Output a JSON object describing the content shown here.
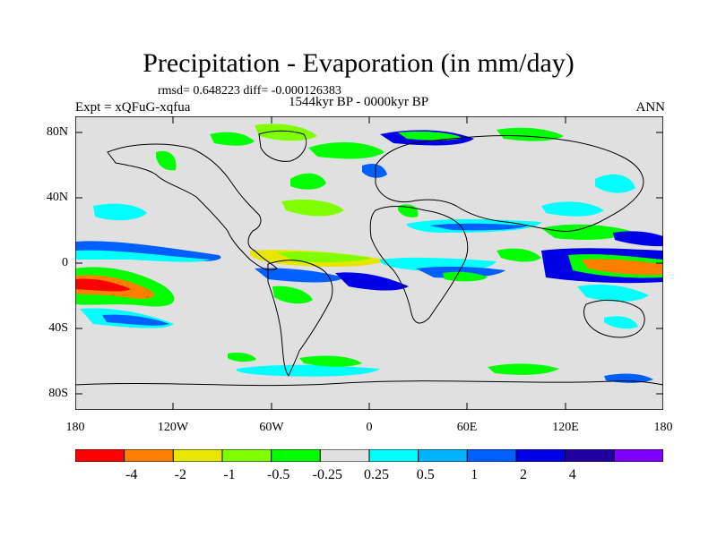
{
  "title": "Precipitation - Evaporation (in mm/day)",
  "stats": "rmsd= 0.648223 diff= -0.000126383",
  "period": "1544kyr BP - 0000kyr BP",
  "experiment": "Expt = xQFuG-xqfua",
  "season": "ANN",
  "lat_ticks": [
    "80N",
    "40N",
    "0",
    "40S",
    "80S"
  ],
  "lon_ticks": [
    "180",
    "120W",
    "60W",
    "0",
    "60E",
    "120E",
    "180"
  ],
  "legend": {
    "colors": [
      "#ff0000",
      "#ff8000",
      "#e6e600",
      "#80ff00",
      "#00ff00",
      "#e0e0e0",
      "#00ffff",
      "#00b3ff",
      "#0060ff",
      "#0000e6",
      "#2000a0",
      "#8000ff"
    ],
    "labels": [
      "-4",
      "-2",
      "-1",
      "-0.5",
      "-0.25",
      "0.25",
      "0.5",
      "1",
      "2",
      "4"
    ]
  }
}
